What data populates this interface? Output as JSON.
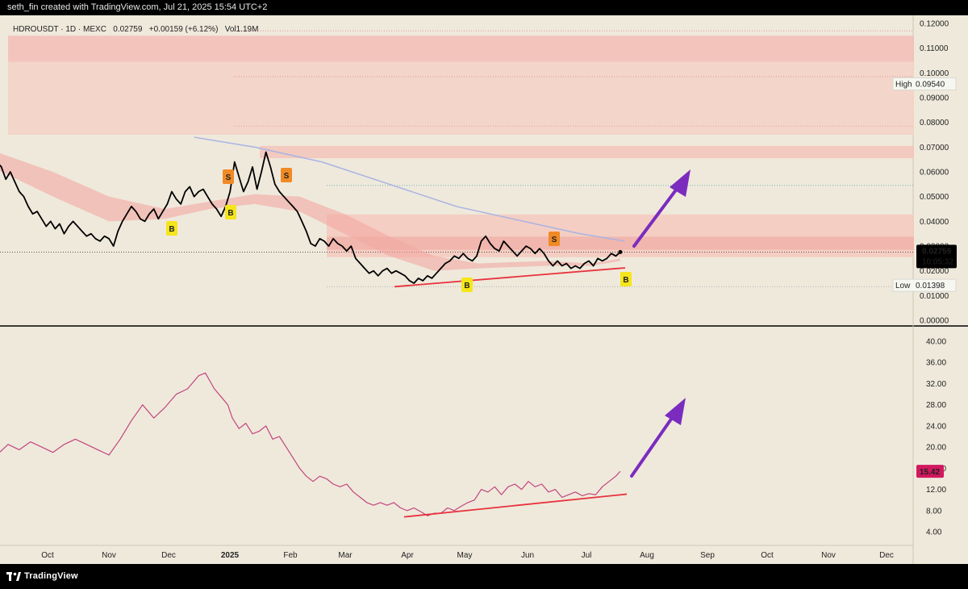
{
  "header": {
    "attribution": "seth_fin created with TradingView.com, Jul 21, 2025 15:54 UTC+2"
  },
  "legend": {
    "symbol": "HDROUSDT · 1D · MEXC",
    "last": "0.02759",
    "change": "+0.00159 (+6.12%)",
    "volume": "Vol1.19M"
  },
  "footer": {
    "brand": "TradingView"
  },
  "colors": {
    "background": "#efe9dc",
    "price_line": "#000000",
    "rsi_line": "#c2457e",
    "trendline": "#e8323c",
    "arrow": "#7b2cbf",
    "supply_zone": "#f4b7b0",
    "buy_badge": "#f5e51a",
    "sell_badge": "#f08a24",
    "ma_line": "#a9b3e3",
    "rsi_badge": "#d1185e"
  },
  "chart_data": [
    {
      "type": "line",
      "pane": "price",
      "ylim": [
        0,
        0.12
      ],
      "ytick_labels": [
        "0.12000",
        "0.11000",
        "0.10000",
        "0.09000",
        "0.08000",
        "0.07000",
        "0.06000",
        "0.05000",
        "0.04000",
        "0.03000",
        "0.02000",
        "0.01000",
        "0.00000"
      ],
      "ytick_values": [
        0.12,
        0.11,
        0.1,
        0.09,
        0.08,
        0.07,
        0.06,
        0.05,
        0.04,
        0.03,
        0.02,
        0.01,
        0.0
      ],
      "months": [
        "Oct",
        "Nov",
        "Dec",
        "2025",
        "Feb",
        "Mar",
        "Apr",
        "May",
        "Jun",
        "Jul",
        "Aug",
        "Sep",
        "Oct",
        "Nov",
        "Dec"
      ],
      "current": {
        "price": "0.02759",
        "countdown": "10:05:32",
        "value": 0.02759
      },
      "high": {
        "label": "High",
        "value_text": "0.09540",
        "value": 0.0954
      },
      "low": {
        "label": "Low",
        "value_text": "0.01398",
        "value": 0.01398
      },
      "series": [
        {
          "values": [
            [
              -5,
              0.064
            ],
            [
              -3,
              0.062
            ],
            [
              -1,
              0.057
            ],
            [
              1,
              0.06
            ],
            [
              3,
              0.056
            ],
            [
              5,
              0.052
            ],
            [
              7,
              0.05
            ],
            [
              9,
              0.046
            ],
            [
              11,
              0.043
            ],
            [
              13,
              0.044
            ],
            [
              15,
              0.041
            ],
            [
              17,
              0.038
            ],
            [
              19,
              0.04
            ],
            [
              21,
              0.037
            ],
            [
              23,
              0.039
            ],
            [
              25,
              0.035
            ],
            [
              27,
              0.038
            ],
            [
              29,
              0.04
            ],
            [
              31,
              0.038
            ],
            [
              33,
              0.036
            ],
            [
              35,
              0.034
            ],
            [
              37,
              0.035
            ],
            [
              39,
              0.033
            ],
            [
              41,
              0.032
            ],
            [
              43,
              0.034
            ],
            [
              45,
              0.033
            ],
            [
              47,
              0.03
            ],
            [
              49,
              0.036
            ],
            [
              51,
              0.04
            ],
            [
              53,
              0.043
            ],
            [
              55,
              0.046
            ],
            [
              57,
              0.044
            ],
            [
              59,
              0.041
            ],
            [
              61,
              0.04
            ],
            [
              63,
              0.043
            ],
            [
              65,
              0.045
            ],
            [
              67,
              0.041
            ],
            [
              69,
              0.044
            ],
            [
              71,
              0.047
            ],
            [
              73,
              0.052
            ],
            [
              75,
              0.049
            ],
            [
              77,
              0.047
            ],
            [
              79,
              0.052
            ],
            [
              81,
              0.054
            ],
            [
              83,
              0.05
            ],
            [
              85,
              0.052
            ],
            [
              87,
              0.053
            ],
            [
              89,
              0.05
            ],
            [
              91,
              0.047
            ],
            [
              93,
              0.045
            ],
            [
              95,
              0.042
            ],
            [
              97,
              0.046
            ],
            [
              99,
              0.052
            ],
            [
              101,
              0.064
            ],
            [
              103,
              0.058
            ],
            [
              105,
              0.052
            ],
            [
              107,
              0.056
            ],
            [
              109,
              0.062
            ],
            [
              111,
              0.053
            ],
            [
              113,
              0.06
            ],
            [
              115,
              0.068
            ],
            [
              117,
              0.062
            ],
            [
              119,
              0.055
            ],
            [
              121,
              0.052
            ],
            [
              123,
              0.05
            ],
            [
              125,
              0.048
            ],
            [
              127,
              0.046
            ],
            [
              129,
              0.044
            ],
            [
              131,
              0.04
            ],
            [
              133,
              0.036
            ],
            [
              135,
              0.031
            ],
            [
              137,
              0.03
            ],
            [
              139,
              0.033
            ],
            [
              141,
              0.032
            ],
            [
              143,
              0.03
            ],
            [
              145,
              0.033
            ],
            [
              147,
              0.031
            ],
            [
              149,
              0.03
            ],
            [
              151,
              0.028
            ],
            [
              153,
              0.03
            ],
            [
              155,
              0.025
            ],
            [
              157,
              0.023
            ],
            [
              159,
              0.021
            ],
            [
              161,
              0.019
            ],
            [
              163,
              0.02
            ],
            [
              165,
              0.018
            ],
            [
              167,
              0.02
            ],
            [
              169,
              0.021
            ],
            [
              171,
              0.019
            ],
            [
              173,
              0.02
            ],
            [
              175,
              0.019
            ],
            [
              177,
              0.018
            ],
            [
              179,
              0.016
            ],
            [
              181,
              0.015
            ],
            [
              183,
              0.017
            ],
            [
              185,
              0.016
            ],
            [
              187,
              0.018
            ],
            [
              189,
              0.017
            ],
            [
              191,
              0.019
            ],
            [
              193,
              0.021
            ],
            [
              195,
              0.023
            ],
            [
              197,
              0.024
            ],
            [
              199,
              0.026
            ],
            [
              201,
              0.025
            ],
            [
              203,
              0.027
            ],
            [
              205,
              0.025
            ],
            [
              207,
              0.024
            ],
            [
              209,
              0.026
            ],
            [
              211,
              0.032
            ],
            [
              213,
              0.034
            ],
            [
              215,
              0.031
            ],
            [
              217,
              0.029
            ],
            [
              219,
              0.028
            ],
            [
              221,
              0.032
            ],
            [
              223,
              0.03
            ],
            [
              225,
              0.028
            ],
            [
              227,
              0.026
            ],
            [
              229,
              0.028
            ],
            [
              231,
              0.03
            ],
            [
              233,
              0.029
            ],
            [
              235,
              0.027
            ],
            [
              237,
              0.029
            ],
            [
              239,
              0.027
            ],
            [
              241,
              0.024
            ],
            [
              243,
              0.022
            ],
            [
              245,
              0.024
            ],
            [
              247,
              0.022
            ],
            [
              249,
              0.023
            ],
            [
              251,
              0.021
            ],
            [
              253,
              0.022
            ],
            [
              255,
              0.021
            ],
            [
              257,
              0.023
            ],
            [
              259,
              0.024
            ],
            [
              261,
              0.022
            ],
            [
              263,
              0.025
            ],
            [
              265,
              0.024
            ],
            [
              267,
              0.025
            ],
            [
              269,
              0.027
            ],
            [
              271,
              0.026
            ],
            [
              273,
              0.0276
            ]
          ]
        }
      ]
    },
    {
      "type": "line",
      "pane": "indicator",
      "ylim": [
        2,
        42
      ],
      "ytick_labels": [
        "40.00",
        "36.00",
        "32.00",
        "28.00",
        "24.00",
        "20.00",
        "16.00",
        "12.00",
        "8.00",
        "4.00"
      ],
      "ytick_values": [
        40,
        36,
        32,
        28,
        24,
        20,
        16,
        12,
        8,
        4
      ],
      "current": {
        "value_text": "15.42",
        "value": 15.42
      },
      "series": [
        {
          "values": [
            [
              -5,
              18.5
            ],
            [
              0,
              20.5
            ],
            [
              5,
              19.5
            ],
            [
              10,
              21.0
            ],
            [
              15,
              20.0
            ],
            [
              20,
              19.0
            ],
            [
              25,
              20.5
            ],
            [
              30,
              21.5
            ],
            [
              35,
              20.5
            ],
            [
              40,
              19.5
            ],
            [
              45,
              18.5
            ],
            [
              50,
              21.5
            ],
            [
              55,
              25.0
            ],
            [
              60,
              28.0
            ],
            [
              65,
              25.5
            ],
            [
              70,
              27.5
            ],
            [
              75,
              30.0
            ],
            [
              80,
              31.0
            ],
            [
              85,
              33.5
            ],
            [
              88,
              34.0
            ],
            [
              92,
              31.0
            ],
            [
              95,
              29.5
            ],
            [
              98,
              28.0
            ],
            [
              100,
              25.5
            ],
            [
              103,
              23.5
            ],
            [
              106,
              24.5
            ],
            [
              109,
              22.5
            ],
            [
              112,
              23.0
            ],
            [
              115,
              24.0
            ],
            [
              118,
              21.5
            ],
            [
              121,
              22.0
            ],
            [
              124,
              20.0
            ],
            [
              127,
              18.0
            ],
            [
              130,
              16.0
            ],
            [
              133,
              14.5
            ],
            [
              136,
              13.5
            ],
            [
              139,
              14.5
            ],
            [
              142,
              14.0
            ],
            [
              145,
              13.0
            ],
            [
              148,
              12.5
            ],
            [
              151,
              13.0
            ],
            [
              154,
              11.5
            ],
            [
              157,
              10.5
            ],
            [
              160,
              9.5
            ],
            [
              163,
              9.0
            ],
            [
              166,
              9.5
            ],
            [
              169,
              9.0
            ],
            [
              172,
              9.5
            ],
            [
              175,
              8.5
            ],
            [
              178,
              8.0
            ],
            [
              181,
              8.5
            ],
            [
              184,
              7.8
            ],
            [
              187,
              7.0
            ],
            [
              190,
              7.5
            ],
            [
              193,
              7.5
            ],
            [
              196,
              8.5
            ],
            [
              199,
              8.0
            ],
            [
              202,
              8.8
            ],
            [
              205,
              9.5
            ],
            [
              208,
              10.0
            ],
            [
              211,
              12.0
            ],
            [
              214,
              11.5
            ],
            [
              217,
              12.5
            ],
            [
              220,
              11.0
            ],
            [
              223,
              12.5
            ],
            [
              226,
              13.0
            ],
            [
              229,
              12.0
            ],
            [
              232,
              13.5
            ],
            [
              235,
              12.5
            ],
            [
              238,
              13.0
            ],
            [
              241,
              11.5
            ],
            [
              244,
              12.0
            ],
            [
              247,
              10.5
            ],
            [
              250,
              11.0
            ],
            [
              253,
              11.5
            ],
            [
              256,
              10.8
            ],
            [
              259,
              11.2
            ],
            [
              262,
              11.0
            ],
            [
              265,
              12.5
            ],
            [
              268,
              13.5
            ],
            [
              271,
              14.5
            ],
            [
              273,
              15.42
            ]
          ]
        }
      ]
    }
  ]
}
